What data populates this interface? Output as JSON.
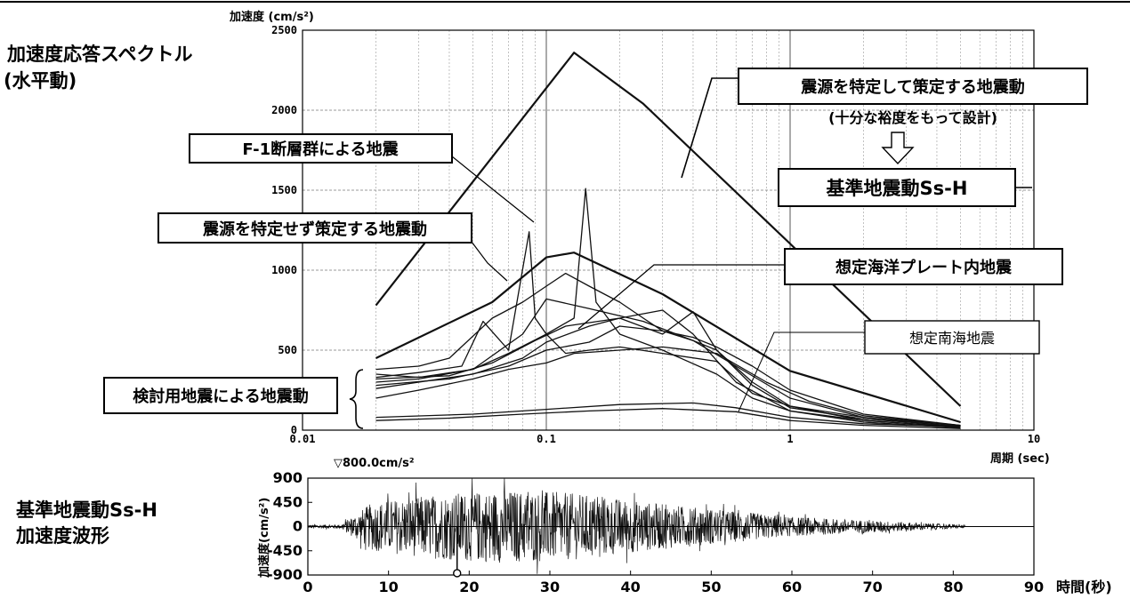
{
  "header": {
    "spectrum_title_line1": "加速度応答スペクトル",
    "spectrum_title_line2": "(水平動)",
    "wave_title_line1": "基準地震動Ss-H",
    "wave_title_line2": "加速度波形"
  },
  "annotations": {
    "source_specified": "震源を特定して策定する地震動",
    "design_margin": "(十分な裕度をもって設計)",
    "ss_h": "基準地震動Ss-H",
    "f1_fault": "F-1断層群による地震",
    "source_unspecified": "震源を特定せず策定する地震動",
    "oceanic_plate": "想定海洋プレート内地震",
    "nankai": "想定南海地震",
    "study_eq": "検討用地震による地震動",
    "peak_marker": "▽800.0cm/s²"
  },
  "chart_data": [
    {
      "type": "line",
      "xscale": "log",
      "ylabel": "加速度 (cm/s²)",
      "xlabel": "周期 (sec)",
      "xlim": [
        0.01,
        10
      ],
      "ylim": [
        0,
        2500
      ],
      "x_ticks": [
        "0.01",
        "0.1",
        "1",
        "10"
      ],
      "y_ticks": [
        "0",
        "500",
        "1000",
        "1500",
        "2000",
        "2500"
      ],
      "grid": true,
      "series": [
        {
          "name": "震源を特定して策定する地震動",
          "x": [
            0.02,
            0.13,
            0.25,
            5
          ],
          "y": [
            780,
            2360,
            2040,
            150
          ]
        },
        {
          "name": "震源を特定せず策定する地震動",
          "x": [
            0.02,
            0.06,
            0.1,
            0.13,
            0.3,
            1,
            5
          ],
          "y": [
            450,
            800,
            1080,
            1110,
            850,
            370,
            50
          ]
        },
        {
          "name": "想定南海地震",
          "x": [
            0.02,
            0.05,
            0.1,
            0.2,
            0.4,
            0.6,
            1,
            2,
            5
          ],
          "y": [
            80,
            100,
            130,
            160,
            170,
            140,
            80,
            40,
            20
          ]
        },
        {
          "x": [
            0.02,
            0.04,
            0.08,
            0.15,
            0.3,
            0.6,
            1,
            2,
            5
          ],
          "y": [
            60,
            75,
            100,
            120,
            135,
            115,
            60,
            30,
            10
          ]
        },
        {
          "x": [
            0.02,
            0.03,
            0.045,
            0.055,
            0.07,
            0.085,
            0.09,
            0.1,
            0.12,
            0.15,
            0.2,
            0.3,
            0.5,
            0.7,
            1,
            2,
            5
          ],
          "y": [
            330,
            360,
            400,
            680,
            500,
            1240,
            700,
            600,
            480,
            500,
            520,
            480,
            430,
            230,
            150,
            80,
            30
          ]
        },
        {
          "x": [
            0.02,
            0.03,
            0.05,
            0.07,
            0.1,
            0.13,
            0.145,
            0.16,
            0.2,
            0.3,
            0.5,
            0.7,
            1,
            2,
            5
          ],
          "y": [
            300,
            320,
            380,
            480,
            600,
            700,
            1510,
            800,
            600,
            500,
            350,
            200,
            120,
            60,
            20
          ]
        },
        {
          "x": [
            0.02,
            0.03,
            0.04,
            0.06,
            0.08,
            0.1,
            0.12,
            0.15,
            0.2,
            0.25,
            0.3,
            0.4,
            0.5,
            0.7,
            1,
            2,
            5
          ],
          "y": [
            380,
            400,
            450,
            700,
            800,
            900,
            980,
            900,
            800,
            700,
            620,
            560,
            500,
            300,
            150,
            60,
            20
          ]
        },
        {
          "x": [
            0.02,
            0.03,
            0.05,
            0.08,
            0.1,
            0.15,
            0.2,
            0.3,
            0.4,
            0.6,
            1,
            2,
            5
          ],
          "y": [
            260,
            300,
            350,
            450,
            550,
            650,
            700,
            750,
            600,
            300,
            120,
            50,
            15
          ]
        },
        {
          "x": [
            0.02,
            0.04,
            0.07,
            0.1,
            0.15,
            0.2,
            0.3,
            0.4,
            0.5,
            0.7,
            1,
            2,
            5
          ],
          "y": [
            280,
            320,
            400,
            500,
            550,
            650,
            620,
            580,
            520,
            400,
            250,
            100,
            30
          ]
        },
        {
          "x": [
            0.02,
            0.03,
            0.05,
            0.07,
            0.1,
            0.13,
            0.2,
            0.3,
            0.5,
            0.8,
            1.2,
            2,
            5
          ],
          "y": [
            200,
            250,
            320,
            380,
            420,
            480,
            500,
            520,
            480,
            300,
            180,
            90,
            30
          ]
        },
        {
          "x": [
            0.02,
            0.04,
            0.06,
            0.09,
            0.12,
            0.2,
            0.3,
            0.4,
            0.5,
            0.7,
            1,
            2,
            5
          ],
          "y": [
            320,
            340,
            420,
            560,
            650,
            700,
            600,
            740,
            500,
            280,
            140,
            70,
            25
          ]
        },
        {
          "x": [
            0.02,
            0.03,
            0.05,
            0.08,
            0.1,
            0.15,
            0.25,
            0.4,
            0.6,
            1,
            2,
            5
          ],
          "y": [
            350,
            330,
            380,
            600,
            820,
            760,
            680,
            560,
            400,
            200,
            80,
            20
          ]
        }
      ]
    },
    {
      "type": "line",
      "ylabel": "加速度(cm/s²)",
      "xlabel": "時間(秒)",
      "xlim": [
        0,
        90
      ],
      "ylim": [
        -900,
        900
      ],
      "x_ticks": [
        "0",
        "10",
        "20",
        "30",
        "40",
        "50",
        "60",
        "70",
        "80",
        "90"
      ],
      "y_ticks": [
        "900",
        "450",
        "0",
        "-450",
        "-900"
      ],
      "duration": 81.5,
      "peak_time": 18.5,
      "peak_value": -800.0
    }
  ]
}
